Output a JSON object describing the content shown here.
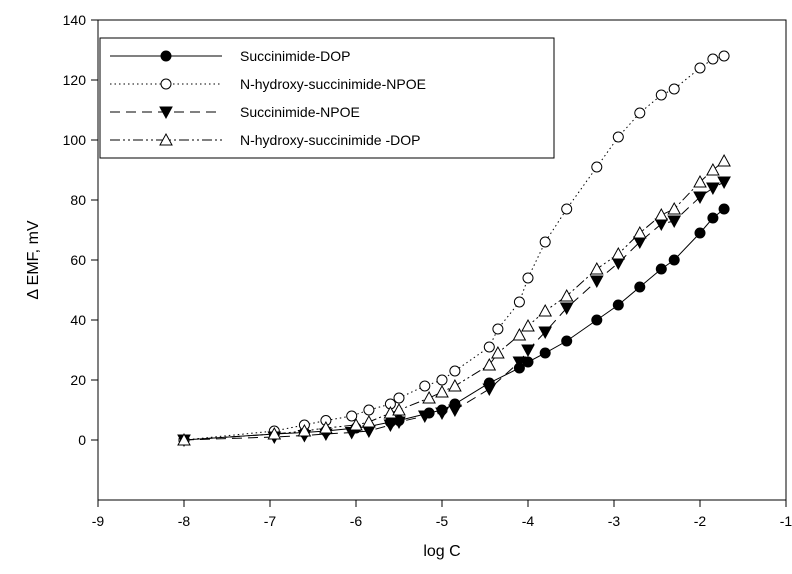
{
  "chart_data": {
    "type": "line",
    "title": "",
    "xlabel": "log C",
    "ylabel": "Δ EMF, mV",
    "xlim": [
      -9,
      -1
    ],
    "ylim": [
      -20,
      140
    ],
    "xticks": [
      -9,
      -8,
      -7,
      -6,
      -5,
      -4,
      -3,
      -2,
      -1
    ],
    "yticks": [
      0,
      20,
      40,
      60,
      80,
      100,
      120,
      140
    ],
    "grid": false,
    "legend_position": "top-left",
    "series": [
      {
        "name": "Succinimide-DOP",
        "line_style": "solid",
        "marker": "filled-circle",
        "x": [
          -8.0,
          -6.95,
          -6.6,
          -6.35,
          -6.0,
          -5.85,
          -5.6,
          -5.5,
          -5.15,
          -5.0,
          -4.85,
          -4.45,
          -4.1,
          -4.0,
          -3.8,
          -3.55,
          -3.2,
          -2.95,
          -2.7,
          -2.45,
          -2.3,
          -2.0,
          -1.85,
          -1.72
        ],
        "y": [
          0,
          2,
          2.5,
          3,
          4,
          4.5,
          6,
          6.5,
          9,
          10,
          12,
          19,
          24,
          26,
          29,
          33,
          40,
          45,
          51,
          57,
          60,
          69,
          74,
          77
        ]
      },
      {
        "name": "N-hydroxy-succinimide-NPOE",
        "line_style": "dotted",
        "marker": "open-circle",
        "x": [
          -8.0,
          -6.95,
          -6.6,
          -6.35,
          -6.05,
          -5.85,
          -5.6,
          -5.5,
          -5.2,
          -5.0,
          -4.85,
          -4.45,
          -4.35,
          -4.1,
          -4.0,
          -3.8,
          -3.55,
          -3.2,
          -2.95,
          -2.7,
          -2.45,
          -2.3,
          -2.0,
          -1.85,
          -1.72
        ],
        "y": [
          0,
          3,
          5,
          6.5,
          8,
          10,
          12,
          14,
          18,
          20,
          23,
          31,
          37,
          46,
          54,
          66,
          77,
          91,
          101,
          109,
          115,
          117,
          124,
          127,
          128
        ]
      },
      {
        "name": "Succinimide-NPOE",
        "line_style": "dashed",
        "marker": "filled-triangle-down",
        "x": [
          -8.0,
          -6.95,
          -6.6,
          -6.35,
          -6.05,
          -5.85,
          -5.6,
          -5.5,
          -5.2,
          -5.0,
          -4.85,
          -4.45,
          -4.1,
          -4.0,
          -3.8,
          -3.55,
          -3.2,
          -2.95,
          -2.7,
          -2.45,
          -2.3,
          -2.0,
          -1.85,
          -1.72
        ],
        "y": [
          0,
          1,
          1.5,
          2,
          2.5,
          3,
          5,
          6,
          8,
          9,
          10,
          17,
          26,
          30,
          36,
          44,
          53,
          59,
          66,
          72,
          73,
          81,
          84,
          86
        ]
      },
      {
        "name": "N-hydroxy-succinimide -DOP",
        "line_style": "dash-dot-dot",
        "marker": "open-triangle-up",
        "x": [
          -8.0,
          -6.95,
          -6.6,
          -6.35,
          -6.0,
          -5.85,
          -5.6,
          -5.5,
          -5.15,
          -5.0,
          -4.85,
          -4.45,
          -4.35,
          -4.1,
          -4.0,
          -3.8,
          -3.55,
          -3.2,
          -2.95,
          -2.7,
          -2.45,
          -2.3,
          -2.0,
          -1.85,
          -1.72
        ],
        "y": [
          0,
          2,
          3,
          4,
          5,
          6,
          9,
          10,
          14,
          16,
          18,
          25,
          29,
          35,
          38,
          43,
          48,
          57,
          62,
          69,
          75,
          77,
          86,
          90,
          93
        ]
      }
    ]
  }
}
